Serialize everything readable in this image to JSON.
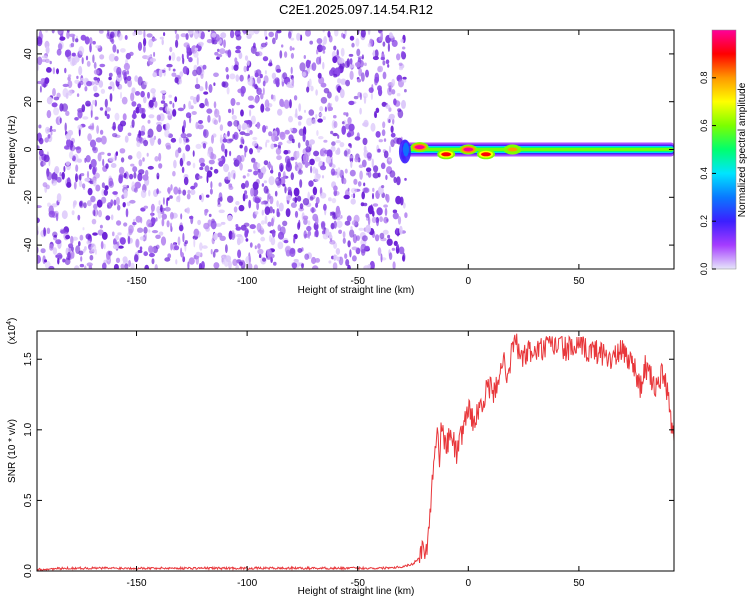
{
  "title": "C2E1.2025.097.14.54.R12",
  "colors": {
    "line": "#e8373b",
    "axis": "#000000",
    "speckle": [
      "#6a1fd6",
      "#8a48e6",
      "#b585f0",
      "#dcc8fa"
    ],
    "colormap": [
      "#e6e6fa",
      "#a53cff",
      "#3b1fff",
      "#0a78ff",
      "#00e5ff",
      "#00ff6e",
      "#7cff00",
      "#ffff00",
      "#ff9900",
      "#ff0000",
      "#ff0099"
    ]
  },
  "chart_data": [
    {
      "type": "heatmap",
      "xlabel": "Height of straight line (km)",
      "ylabel": "Frequency (Hz)",
      "xlim": [
        -195,
        93
      ],
      "ylim": [
        -50,
        50
      ],
      "xticks": [
        -150,
        -100,
        -50,
        0,
        50
      ],
      "yticks": [
        -40,
        -20,
        0,
        20,
        40
      ],
      "noise_region_x": [
        -195,
        -30
      ],
      "signal_band": {
        "x_start": -30,
        "x_end": 93,
        "center_freq": 0,
        "peaks": [
          {
            "x": -22,
            "freq": 1,
            "amplitude": 0.95
          },
          {
            "x": -10,
            "freq": -2,
            "amplitude": 0.9
          },
          {
            "x": 0,
            "freq": 0,
            "amplitude": 0.95
          },
          {
            "x": 8,
            "freq": -2,
            "amplitude": 0.9
          },
          {
            "x": 20,
            "freq": 0,
            "amplitude": 0.8
          }
        ]
      },
      "colorbar": {
        "label": "Normalized spectral amplitude",
        "range": [
          0,
          1
        ],
        "ticks": [
          "0.0",
          "0.2",
          "0.4",
          "0.6",
          "0.8"
        ]
      }
    },
    {
      "type": "line",
      "xlabel": "Height of straight line (km)",
      "ylabel": "SNR (10 * v/v)",
      "y_multiplier": "(x10",
      "y_multiplier_exp": "4",
      "xlim": [
        -195,
        93
      ],
      "ylim": [
        0,
        1.7
      ],
      "xticks": [
        -150,
        -100,
        -50,
        0,
        50
      ],
      "yticks": [
        "0.0",
        "0.5",
        "1.0",
        "1.5"
      ],
      "series": [
        {
          "x": [
            -195,
            -180,
            -160,
            -140,
            -120,
            -100,
            -80,
            -60,
            -40,
            -30,
            -25,
            -22,
            -20,
            -19,
            -18,
            -17,
            -16,
            -15,
            -14,
            -13,
            -12,
            -10,
            -8,
            -5,
            -2,
            0,
            3,
            6,
            9,
            12,
            15,
            18,
            21,
            24,
            27,
            30,
            35,
            40,
            45,
            50,
            55,
            60,
            65,
            70,
            75,
            78,
            80,
            82,
            85,
            88,
            90,
            93
          ],
          "y": [
            0.01,
            0.02,
            0.02,
            0.02,
            0.02,
            0.02,
            0.02,
            0.02,
            0.02,
            0.03,
            0.05,
            0.1,
            0.2,
            0.12,
            0.3,
            0.5,
            0.7,
            0.85,
            1.05,
            0.75,
            1.08,
            0.85,
            1.0,
            0.82,
            1.05,
            1.15,
            1.05,
            1.2,
            1.3,
            1.25,
            1.5,
            1.4,
            1.65,
            1.5,
            1.55,
            1.55,
            1.58,
            1.6,
            1.57,
            1.58,
            1.56,
            1.55,
            1.5,
            1.56,
            1.45,
            1.3,
            1.45,
            1.38,
            1.3,
            1.4,
            1.25,
            0.92
          ]
        }
      ]
    }
  ]
}
